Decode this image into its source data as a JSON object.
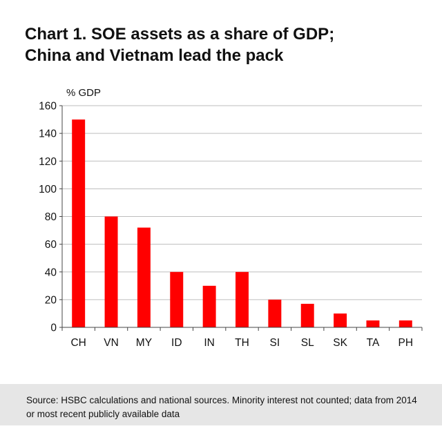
{
  "title": {
    "line1": "Chart 1. SOE assets as a share of GDP;",
    "line2": "China and Vietnam lead the pack"
  },
  "source": "Source: HSBC calculations and national sources. Minority interest not counted; data from 2014 or most recent publicly available data",
  "chart_data": {
    "type": "bar",
    "ylabel": "% GDP",
    "categories": [
      "CH",
      "VN",
      "MY",
      "ID",
      "IN",
      "TH",
      "SI",
      "SL",
      "SK",
      "TA",
      "PH"
    ],
    "values": [
      150,
      80,
      72,
      40,
      30,
      40,
      20,
      17,
      10,
      5,
      5
    ],
    "ylim": [
      0,
      160
    ],
    "yticks": [
      0,
      20,
      40,
      60,
      80,
      100,
      120,
      140,
      160
    ],
    "grid": true,
    "bar_color": "#ff0000",
    "grid_color": "#bdbdbd"
  }
}
